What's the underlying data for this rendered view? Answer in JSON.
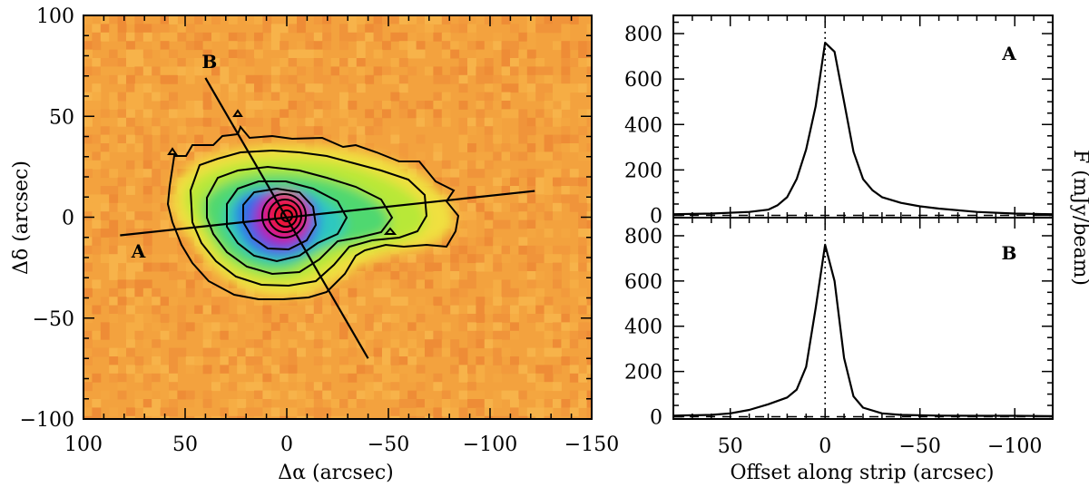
{
  "chart_data": [
    {
      "type": "heatmap",
      "title": "",
      "xlabel": "Δα (arcsec)",
      "ylabel": "Δδ (arcsec)",
      "xlim": [
        100,
        -150
      ],
      "ylim": [
        -100,
        100
      ],
      "x_ticks": [
        100,
        50,
        0,
        -50,
        -100,
        -150
      ],
      "y_ticks": [
        100,
        50,
        0,
        -50,
        -100
      ],
      "x_tick_labels": [
        "100",
        "50",
        "0",
        "−50",
        "−100",
        "−150"
      ],
      "y_tick_labels": [
        "100",
        "50",
        "0",
        "−50",
        "−100"
      ],
      "peak": {
        "x": 0,
        "y": 0
      },
      "strips": [
        {
          "name": "A",
          "from": [
            82,
            -9
          ],
          "to": [
            -122,
            13
          ],
          "label_at": [
            73,
            -20
          ]
        },
        {
          "name": "B",
          "from": [
            40,
            69
          ],
          "to": [
            -40,
            -70
          ],
          "label_at": [
            38,
            74
          ]
        }
      ],
      "colors": {
        "background": "#f3a23e",
        "contour": "#000000"
      }
    },
    {
      "type": "line",
      "panel": "A",
      "title": "A",
      "xlabel": "",
      "ylabel": "F (mJy/beam)",
      "xlim": [
        80,
        -120
      ],
      "ylim": [
        -10,
        880
      ],
      "x_ticks": [
        50,
        0,
        -50,
        -100
      ],
      "y_ticks": [
        0,
        200,
        400,
        600,
        800
      ],
      "y_tick_labels": [
        "0",
        "200",
        "400",
        "600",
        "800"
      ],
      "x": [
        80,
        60,
        40,
        30,
        25,
        20,
        15,
        10,
        5,
        0,
        -5,
        -10,
        -15,
        -20,
        -25,
        -30,
        -40,
        -50,
        -60,
        -80,
        -100,
        -120
      ],
      "y": [
        5,
        8,
        15,
        25,
        45,
        80,
        160,
        290,
        480,
        760,
        720,
        500,
        280,
        160,
        110,
        80,
        55,
        40,
        30,
        15,
        8,
        5
      ]
    },
    {
      "type": "line",
      "panel": "B",
      "title": "B",
      "xlabel": "Offset along strip (arcsec)",
      "ylabel": "",
      "xlim": [
        80,
        -120
      ],
      "ylim": [
        -10,
        880
      ],
      "x_ticks": [
        50,
        0,
        -50,
        -100
      ],
      "x_tick_labels": [
        "50",
        "0",
        "−50",
        "−100"
      ],
      "y_ticks": [
        0,
        200,
        400,
        600,
        800
      ],
      "y_tick_labels": [
        "0",
        "200",
        "400",
        "600",
        "800"
      ],
      "x": [
        80,
        60,
        50,
        40,
        30,
        20,
        15,
        10,
        5,
        0,
        -5,
        -10,
        -15,
        -20,
        -30,
        -40,
        -60,
        -80,
        -100,
        -120
      ],
      "y": [
        5,
        8,
        15,
        30,
        55,
        85,
        120,
        220,
        480,
        760,
        600,
        260,
        90,
        40,
        15,
        8,
        5,
        4,
        4,
        3
      ]
    }
  ]
}
